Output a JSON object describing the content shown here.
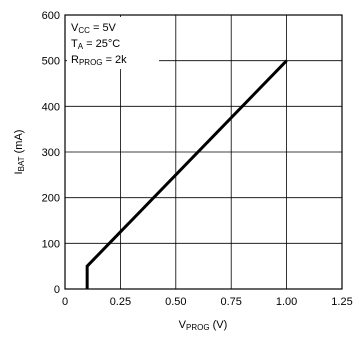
{
  "chart_data": {
    "type": "line",
    "title": "",
    "xlabel": {
      "main": "V",
      "sub": "PROG",
      "unit": " (V)"
    },
    "ylabel": {
      "main": "I",
      "sub": "BAT",
      "unit": " (mA)"
    },
    "xlim": [
      0,
      1.25
    ],
    "ylim": [
      0,
      600
    ],
    "grid": true,
    "x_ticks": [
      0,
      0.25,
      0.5,
      0.75,
      1.0,
      1.25
    ],
    "x_tick_labels": [
      "0",
      "0.25",
      "0.50",
      "0.75",
      "1.00",
      "1.25"
    ],
    "y_ticks": [
      0,
      100,
      200,
      300,
      400,
      500,
      600
    ],
    "y_tick_labels": [
      "0",
      "100",
      "200",
      "300",
      "400",
      "500",
      "600"
    ],
    "series": [
      {
        "x": [
          0.1,
          0.1,
          1.0
        ],
        "y": [
          0,
          50,
          500
        ]
      }
    ],
    "annotations": [
      {
        "main": "V",
        "sub": "CC",
        "rest": " = 5V"
      },
      {
        "main": "T",
        "sub": "A",
        "rest": " = 25°C"
      },
      {
        "main": "R",
        "sub": "PROG",
        "rest": " = 2k"
      }
    ],
    "colors": {
      "line": "#000000",
      "grid": "#000000",
      "background": "#ffffff"
    }
  }
}
